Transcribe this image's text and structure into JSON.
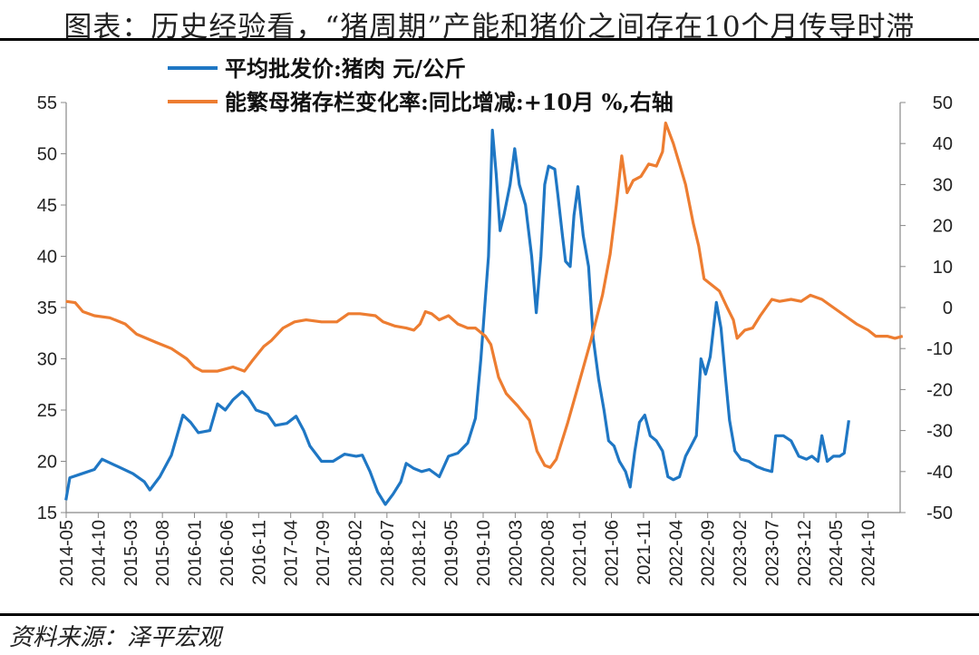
{
  "header": {
    "title": "图表：历史经验看，“猪周期”产能和猪价之间存在10个月传导时滞"
  },
  "footer": {
    "source": "资料来源：泽平宏观"
  },
  "colors": {
    "price": "#1F77C4",
    "sows": "#ED7D31",
    "axis": "#888888",
    "rule": "#000000"
  },
  "chart_data": {
    "type": "line",
    "title": "历史经验看，“猪周期”产能和猪价之间存在10个月传导时滞",
    "x_tick_labels": [
      "2014-05",
      "2014-10",
      "2015-03",
      "2015-08",
      "2016-01",
      "2016-06",
      "2016-11",
      "2017-04",
      "2017-09",
      "2018-02",
      "2018-07",
      "2018-12",
      "2019-05",
      "2019-10",
      "2020-03",
      "2020-08",
      "2021-01",
      "2021-06",
      "2021-11",
      "2022-04",
      "2022-09",
      "2023-02",
      "2023-07",
      "2023-12",
      "2024-05",
      "2024-10"
    ],
    "x_range": [
      "2014-05",
      "2025-03"
    ],
    "y_left": {
      "ticks": [
        "55",
        "50",
        "45",
        "40",
        "35",
        "30",
        "25",
        "20",
        "15"
      ],
      "range": [
        15,
        55
      ]
    },
    "y_right": {
      "ticks": [
        "50",
        "40",
        "30",
        "20",
        "10",
        "0",
        "-10",
        "-20",
        "-30",
        "-40",
        "-50"
      ],
      "range": [
        -50,
        50
      ]
    },
    "legend_position": "top",
    "series": [
      {
        "name": "平均批发价:猪肉 元/公斤",
        "axis": "left",
        "points": [
          [
            2014.33,
            16.2
          ],
          [
            2014.38,
            18.4
          ],
          [
            2014.5,
            18.7
          ],
          [
            2014.7,
            19.2
          ],
          [
            2014.8,
            20.2
          ],
          [
            2015.0,
            19.5
          ],
          [
            2015.2,
            18.8
          ],
          [
            2015.35,
            18.0
          ],
          [
            2015.42,
            17.2
          ],
          [
            2015.55,
            18.5
          ],
          [
            2015.7,
            20.6
          ],
          [
            2015.85,
            24.5
          ],
          [
            2015.95,
            23.8
          ],
          [
            2016.05,
            22.8
          ],
          [
            2016.2,
            23.0
          ],
          [
            2016.3,
            25.6
          ],
          [
            2016.4,
            25.0
          ],
          [
            2016.5,
            26.0
          ],
          [
            2016.62,
            26.8
          ],
          [
            2016.7,
            26.2
          ],
          [
            2016.8,
            25.0
          ],
          [
            2016.95,
            24.6
          ],
          [
            2017.05,
            23.5
          ],
          [
            2017.2,
            23.7
          ],
          [
            2017.32,
            24.4
          ],
          [
            2017.42,
            23.0
          ],
          [
            2017.5,
            21.5
          ],
          [
            2017.65,
            20.0
          ],
          [
            2017.8,
            20.0
          ],
          [
            2017.95,
            20.7
          ],
          [
            2018.1,
            20.5
          ],
          [
            2018.18,
            20.6
          ],
          [
            2018.28,
            19.0
          ],
          [
            2018.38,
            17.0
          ],
          [
            2018.48,
            15.8
          ],
          [
            2018.58,
            16.8
          ],
          [
            2018.68,
            18.0
          ],
          [
            2018.75,
            19.8
          ],
          [
            2018.85,
            19.3
          ],
          [
            2018.95,
            19.0
          ],
          [
            2019.05,
            19.2
          ],
          [
            2019.18,
            18.5
          ],
          [
            2019.3,
            20.5
          ],
          [
            2019.42,
            20.8
          ],
          [
            2019.55,
            21.8
          ],
          [
            2019.65,
            24.2
          ],
          [
            2019.72,
            30.0
          ],
          [
            2019.78,
            36.0
          ],
          [
            2019.82,
            40.0
          ],
          [
            2019.87,
            52.3
          ],
          [
            2019.92,
            48.0
          ],
          [
            2019.97,
            42.5
          ],
          [
            2020.02,
            44.0
          ],
          [
            2020.1,
            47.0
          ],
          [
            2020.16,
            50.5
          ],
          [
            2020.22,
            47.0
          ],
          [
            2020.3,
            45.0
          ],
          [
            2020.38,
            40.0
          ],
          [
            2020.44,
            34.5
          ],
          [
            2020.5,
            40.0
          ],
          [
            2020.55,
            47.0
          ],
          [
            2020.6,
            48.8
          ],
          [
            2020.68,
            48.5
          ],
          [
            2020.72,
            46.0
          ],
          [
            2020.78,
            42.0
          ],
          [
            2020.82,
            39.5
          ],
          [
            2020.88,
            39.0
          ],
          [
            2020.93,
            44.0
          ],
          [
            2020.98,
            46.8
          ],
          [
            2021.05,
            42.0
          ],
          [
            2021.12,
            39.0
          ],
          [
            2021.18,
            32.0
          ],
          [
            2021.25,
            28.0
          ],
          [
            2021.32,
            25.0
          ],
          [
            2021.38,
            22.0
          ],
          [
            2021.45,
            21.5
          ],
          [
            2021.52,
            20.0
          ],
          [
            2021.6,
            19.0
          ],
          [
            2021.66,
            17.5
          ],
          [
            2021.72,
            21.0
          ],
          [
            2021.78,
            23.8
          ],
          [
            2021.85,
            24.5
          ],
          [
            2021.92,
            22.5
          ],
          [
            2022.0,
            22.0
          ],
          [
            2022.08,
            21.0
          ],
          [
            2022.15,
            18.5
          ],
          [
            2022.22,
            18.2
          ],
          [
            2022.3,
            18.5
          ],
          [
            2022.38,
            20.5
          ],
          [
            2022.45,
            21.5
          ],
          [
            2022.52,
            22.5
          ],
          [
            2022.58,
            30.0
          ],
          [
            2022.64,
            28.5
          ],
          [
            2022.7,
            30.2
          ],
          [
            2022.78,
            35.5
          ],
          [
            2022.84,
            33.0
          ],
          [
            2022.9,
            28.0
          ],
          [
            2022.95,
            24.0
          ],
          [
            2023.02,
            21.0
          ],
          [
            2023.1,
            20.2
          ],
          [
            2023.2,
            20.0
          ],
          [
            2023.3,
            19.5
          ],
          [
            2023.4,
            19.2
          ],
          [
            2023.5,
            19.0
          ],
          [
            2023.55,
            22.5
          ],
          [
            2023.65,
            22.5
          ],
          [
            2023.75,
            22.0
          ],
          [
            2023.85,
            20.5
          ],
          [
            2023.95,
            20.2
          ],
          [
            2024.02,
            20.5
          ],
          [
            2024.1,
            20.0
          ],
          [
            2024.15,
            22.5
          ],
          [
            2024.22,
            20.0
          ],
          [
            2024.3,
            20.5
          ],
          [
            2024.38,
            20.5
          ],
          [
            2024.44,
            20.8
          ],
          [
            2024.5,
            24.0
          ]
        ]
      },
      {
        "name": "能繁母猪存栏变化率:同比增减:+10月 %,右轴",
        "axis": "right",
        "points": [
          [
            2014.33,
            1.5
          ],
          [
            2014.45,
            1.2
          ],
          [
            2014.55,
            -1.0
          ],
          [
            2014.7,
            -2.0
          ],
          [
            2014.9,
            -2.5
          ],
          [
            2015.1,
            -4.0
          ],
          [
            2015.25,
            -6.5
          ],
          [
            2015.5,
            -8.5
          ],
          [
            2015.7,
            -10.0
          ],
          [
            2015.9,
            -12.5
          ],
          [
            2016.0,
            -14.5
          ],
          [
            2016.1,
            -15.5
          ],
          [
            2016.3,
            -15.5
          ],
          [
            2016.5,
            -14.5
          ],
          [
            2016.65,
            -15.5
          ],
          [
            2016.75,
            -13.0
          ],
          [
            2016.9,
            -9.5
          ],
          [
            2017.0,
            -8.0
          ],
          [
            2017.15,
            -5.0
          ],
          [
            2017.3,
            -3.5
          ],
          [
            2017.45,
            -3.0
          ],
          [
            2017.65,
            -3.5
          ],
          [
            2017.85,
            -3.5
          ],
          [
            2018.0,
            -1.5
          ],
          [
            2018.15,
            -1.5
          ],
          [
            2018.35,
            -2.0
          ],
          [
            2018.45,
            -3.5
          ],
          [
            2018.6,
            -4.5
          ],
          [
            2018.75,
            -5.0
          ],
          [
            2018.85,
            -5.5
          ],
          [
            2018.93,
            -4.0
          ],
          [
            2019.0,
            -1.0
          ],
          [
            2019.08,
            -1.5
          ],
          [
            2019.18,
            -3.0
          ],
          [
            2019.3,
            -2.0
          ],
          [
            2019.42,
            -4.0
          ],
          [
            2019.55,
            -5.0
          ],
          [
            2019.65,
            -5.0
          ],
          [
            2019.78,
            -7.0
          ],
          [
            2019.85,
            -9.0
          ],
          [
            2019.95,
            -17.0
          ],
          [
            2020.05,
            -21.0
          ],
          [
            2020.2,
            -24.0
          ],
          [
            2020.35,
            -27.5
          ],
          [
            2020.45,
            -35.0
          ],
          [
            2020.55,
            -38.5
          ],
          [
            2020.62,
            -39.0
          ],
          [
            2020.7,
            -37.0
          ],
          [
            2020.85,
            -28.0
          ],
          [
            2021.0,
            -18.0
          ],
          [
            2021.15,
            -8.0
          ],
          [
            2021.3,
            3.0
          ],
          [
            2021.4,
            13.0
          ],
          [
            2021.48,
            25.0
          ],
          [
            2021.55,
            37.0
          ],
          [
            2021.62,
            28.0
          ],
          [
            2021.7,
            31.0
          ],
          [
            2021.8,
            32.0
          ],
          [
            2021.9,
            35.0
          ],
          [
            2022.0,
            34.5
          ],
          [
            2022.08,
            38.0
          ],
          [
            2022.12,
            45.0
          ],
          [
            2022.22,
            40.0
          ],
          [
            2022.3,
            35.0
          ],
          [
            2022.38,
            30.0
          ],
          [
            2022.48,
            20.5
          ],
          [
            2022.55,
            15.0
          ],
          [
            2022.62,
            7.0
          ],
          [
            2022.72,
            5.5
          ],
          [
            2022.82,
            4.0
          ],
          [
            2022.92,
            0.0
          ],
          [
            2023.0,
            -3.0
          ],
          [
            2023.05,
            -7.5
          ],
          [
            2023.15,
            -5.5
          ],
          [
            2023.25,
            -5.0
          ],
          [
            2023.35,
            -2.0
          ],
          [
            2023.5,
            2.0
          ],
          [
            2023.6,
            1.5
          ],
          [
            2023.75,
            2.0
          ],
          [
            2023.88,
            1.5
          ],
          [
            2024.0,
            3.0
          ],
          [
            2024.15,
            2.0
          ],
          [
            2024.3,
            0.0
          ],
          [
            2024.45,
            -2.0
          ],
          [
            2024.6,
            -4.0
          ],
          [
            2024.75,
            -5.5
          ],
          [
            2024.85,
            -7.0
          ],
          [
            2025.0,
            -7.0
          ],
          [
            2025.1,
            -7.5
          ],
          [
            2025.2,
            -7.0
          ]
        ]
      }
    ]
  }
}
